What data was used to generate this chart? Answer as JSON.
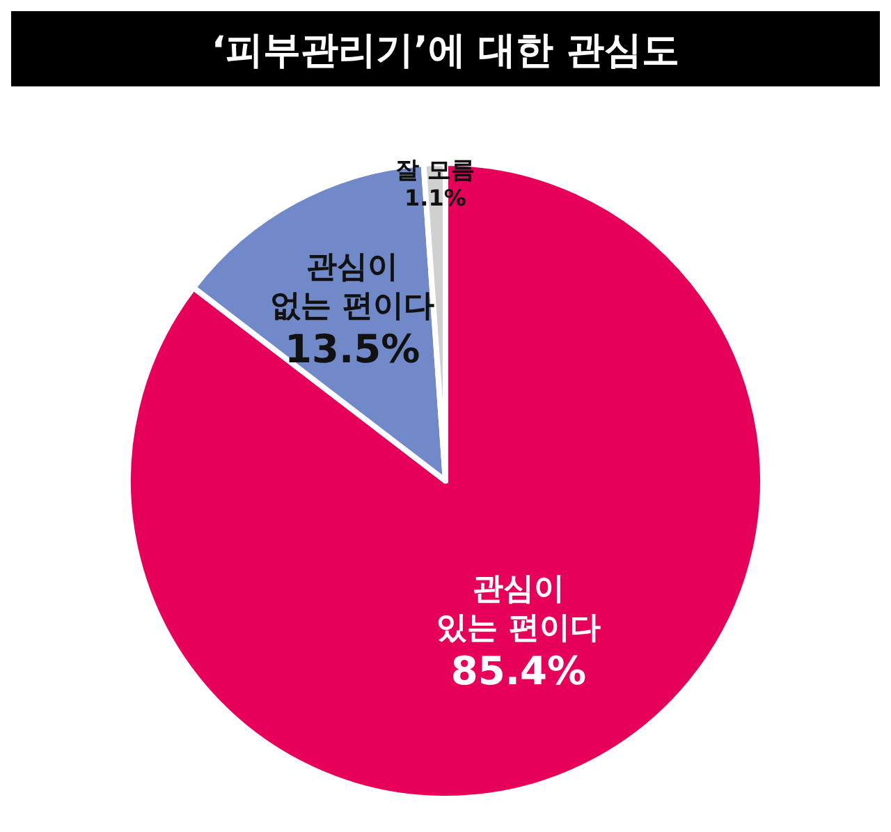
{
  "chart_data": {
    "type": "pie",
    "title": "‘피부관리기’에 대한 관심도",
    "categories": [
      "관심이\n있는 편이다",
      "관심이\n없는 편이다",
      "잘 모름"
    ],
    "values": [
      85.4,
      13.5,
      1.1
    ],
    "value_labels": [
      "85.4%",
      "13.5%",
      "1.1%"
    ],
    "colors": [
      "#e6005a",
      "#7189c8",
      "#d0d0d0"
    ]
  }
}
